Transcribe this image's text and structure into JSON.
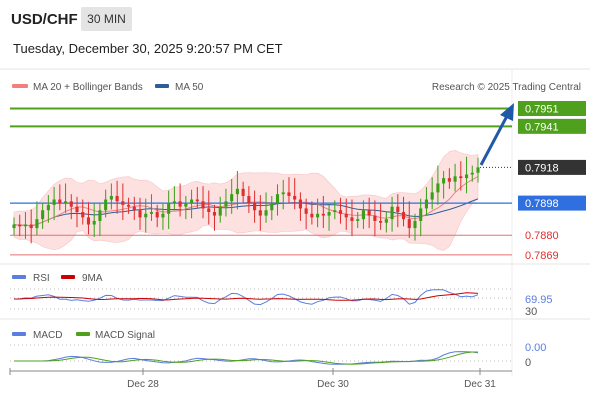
{
  "header": {
    "symbol": "USD/CHF",
    "timeframe": "30 MIN",
    "datetime": "Tuesday, December 30, 2025 9:20:57 PM CET"
  },
  "legend": {
    "ma20_label": "MA 20 + Bollinger Bands",
    "ma50_label": "MA 50",
    "source": "Research © 2025 Trading Central",
    "rsi_label": "RSI",
    "rsi_ma_label": "9MA",
    "macd_label": "MACD",
    "macd_signal_label": "MACD Signal"
  },
  "colors": {
    "up": "#38a018",
    "down": "#e02d2d",
    "target": "#4fa01d",
    "pivot": "#2f6fe0",
    "support": "#e87070",
    "ma20": "#f08080",
    "ma50": "#2e5e9a",
    "rsi": "#5b7ee0",
    "rsi_ma": "#cc0000",
    "macd": "#5b7ee0",
    "macd_signal": "#4fa01d",
    "band": "#fde0e0",
    "arrow": "#1f5aa8"
  },
  "levels": [
    {
      "value": "0.7951",
      "type": "target"
    },
    {
      "value": "0.7941",
      "type": "target"
    },
    {
      "value": "0.7918",
      "type": "price"
    },
    {
      "value": "0.7898",
      "type": "pivot"
    },
    {
      "value": "0.7880",
      "type": "support"
    },
    {
      "value": "0.7869",
      "type": "support"
    }
  ],
  "indicators": {
    "rsi_value": "69.95",
    "rsi_lower": "30",
    "macd_value": "0.00",
    "macd_zero": "0"
  },
  "x_axis": [
    "Dec 28",
    "Dec 30",
    "Dec 31"
  ],
  "chart_data": {
    "type": "candlestick",
    "symbol": "USD/CHF",
    "interval": "30 MIN",
    "price_range": [
      0.7865,
      0.7958
    ],
    "close_series": [
      0.7886,
      0.7885,
      0.7886,
      0.7884,
      0.7889,
      0.7894,
      0.7897,
      0.79,
      0.7898,
      0.7899,
      0.7896,
      0.7893,
      0.789,
      0.7886,
      0.7888,
      0.7894,
      0.79,
      0.7902,
      0.7899,
      0.7897,
      0.7896,
      0.7894,
      0.789,
      0.7892,
      0.7893,
      0.789,
      0.7892,
      0.7898,
      0.7899,
      0.7896,
      0.7898,
      0.79,
      0.7899,
      0.7895,
      0.7893,
      0.7891,
      0.7896,
      0.7899,
      0.7903,
      0.7906,
      0.7902,
      0.7898,
      0.7894,
      0.7891,
      0.7894,
      0.7898,
      0.7903,
      0.7904,
      0.7902,
      0.79,
      0.7895,
      0.7892,
      0.789,
      0.7892,
      0.7891,
      0.7893,
      0.7894,
      0.7892,
      0.789,
      0.7888,
      0.7889,
      0.7894,
      0.7891,
      0.7888,
      0.7887,
      0.7889,
      0.7896,
      0.7893,
      0.7889,
      0.7884,
      0.7888,
      0.7895,
      0.79,
      0.7904,
      0.7909,
      0.7912,
      0.791,
      0.7913,
      0.7912,
      0.7914,
      0.7915,
      0.7918
    ],
    "ma20_start": 0.7884,
    "ma20_end": 0.7908,
    "ma50_start": 0.788,
    "ma50_end": 0.7898,
    "bollinger_upper_end": 0.7925,
    "bollinger_lower_end": 0.788,
    "target_levels": [
      0.7941,
      0.7951
    ],
    "pivot": 0.7898,
    "supports": [
      0.788,
      0.7869
    ],
    "last_price": 0.7918,
    "rsi_last": 69.95,
    "macd_last": 0.0,
    "x_ticks": [
      "Dec 28",
      "Dec 30",
      "Dec 31"
    ]
  }
}
